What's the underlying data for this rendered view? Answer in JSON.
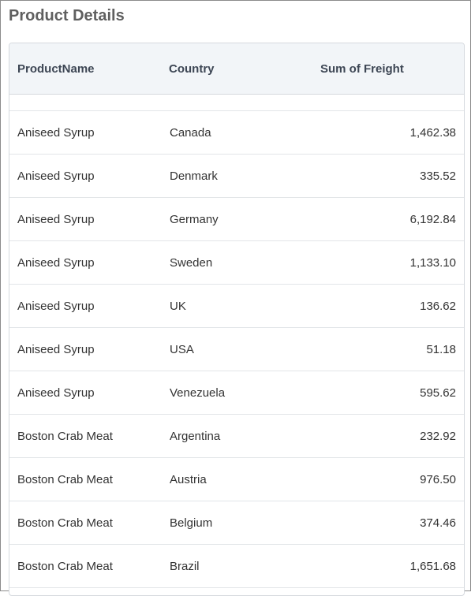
{
  "panel": {
    "title": "Product Details"
  },
  "grid": {
    "columns": [
      "ProductName",
      "Country",
      "Sum of Freight"
    ],
    "rows": [
      [
        "Aniseed Syrup",
        "Canada",
        "1,462.38"
      ],
      [
        "Aniseed Syrup",
        "Denmark",
        "335.52"
      ],
      [
        "Aniseed Syrup",
        "Germany",
        "6,192.84"
      ],
      [
        "Aniseed Syrup",
        "Sweden",
        "1,133.10"
      ],
      [
        "Aniseed Syrup",
        "UK",
        "136.62"
      ],
      [
        "Aniseed Syrup",
        "USA",
        "51.18"
      ],
      [
        "Aniseed Syrup",
        "Venezuela",
        "595.62"
      ],
      [
        "Boston Crab Meat",
        "Argentina",
        "232.92"
      ],
      [
        "Boston Crab Meat",
        "Austria",
        "976.50"
      ],
      [
        "Boston Crab Meat",
        "Belgium",
        "374.46"
      ],
      [
        "Boston Crab Meat",
        "Brazil",
        "1,651.68"
      ]
    ]
  }
}
